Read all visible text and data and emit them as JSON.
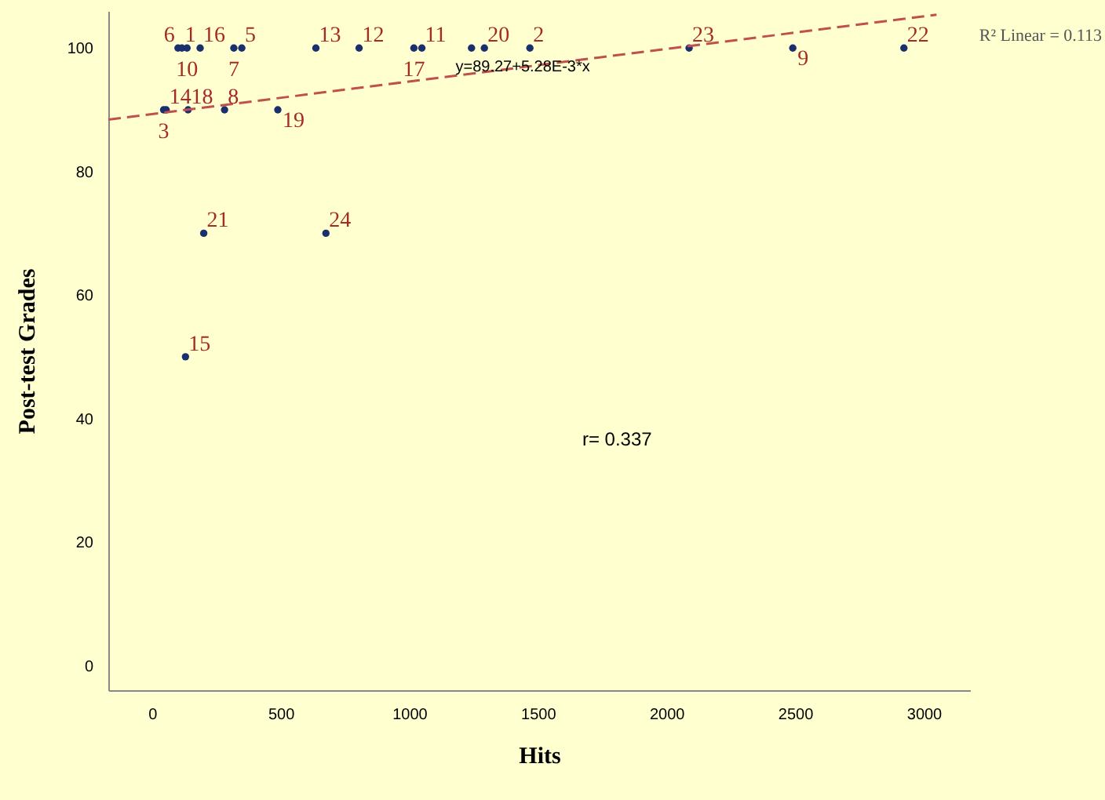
{
  "chart_data": {
    "type": "scatter",
    "xlabel": "Hits",
    "ylabel": "Post-test Grades",
    "xlim": [
      -170,
      3180
    ],
    "ylim": [
      -4,
      106
    ],
    "xticks": [
      0,
      500,
      1000,
      1500,
      2000,
      2500,
      3000
    ],
    "yticks": [
      0,
      20,
      40,
      60,
      80,
      100
    ],
    "grid": false,
    "marker": "circle",
    "series": [
      {
        "color": "#1a2f6e",
        "x": [
          101,
          116,
          136,
          187,
          318,
          349,
          637,
          805,
          1018,
          1049,
          1242,
          1292,
          1469,
          2088,
          2491,
          2923,
          45,
          55,
          140,
          282,
          489,
          201,
          676,
          130
        ],
        "values": [
          100,
          100,
          100,
          100,
          100,
          100,
          100,
          100,
          100,
          100,
          100,
          100,
          100,
          100,
          100,
          100,
          90,
          90,
          90,
          90,
          90,
          70,
          70,
          50
        ]
      },
      {
        "type": "line",
        "color": "#c0504d",
        "line_style": "dashed",
        "marker": "none",
        "x": [
          -170,
          3050
        ],
        "values": [
          88.4,
          105.4
        ]
      }
    ],
    "annotations": [
      {
        "text": "6",
        "x": 101,
        "y": 100
      },
      {
        "text": "1",
        "x": 116,
        "y": 100
      },
      {
        "text": "10",
        "x": 136,
        "y": 100
      },
      {
        "text": "16",
        "x": 187,
        "y": 100
      },
      {
        "text": "7",
        "x": 318,
        "y": 100
      },
      {
        "text": "5",
        "x": 349,
        "y": 100
      },
      {
        "text": "13",
        "x": 637,
        "y": 100
      },
      {
        "text": "12",
        "x": 805,
        "y": 100
      },
      {
        "text": "17",
        "x": 1018,
        "y": 100
      },
      {
        "text": "11",
        "x": 1049,
        "y": 100
      },
      {
        "text": "20",
        "x": 1292,
        "y": 100
      },
      {
        "text": "2",
        "x": 1469,
        "y": 100
      },
      {
        "text": "23",
        "x": 2088,
        "y": 100
      },
      {
        "text": "9",
        "x": 2491,
        "y": 100
      },
      {
        "text": "22",
        "x": 2923,
        "y": 100
      },
      {
        "text": "3",
        "x": 45,
        "y": 90
      },
      {
        "text": "14",
        "x": 55,
        "y": 90
      },
      {
        "text": "18",
        "x": 140,
        "y": 90
      },
      {
        "text": "8",
        "x": 282,
        "y": 90
      },
      {
        "text": "19",
        "x": 489,
        "y": 90
      },
      {
        "text": "21",
        "x": 201,
        "y": 70
      },
      {
        "text": "24",
        "x": 676,
        "y": 70
      },
      {
        "text": "15",
        "x": 130,
        "y": 50
      },
      {
        "text": "y=89.27+5.28E-3*x",
        "x": 1180,
        "y": 97
      },
      "R² Linear = 0.113",
      "r= 0.337"
    ]
  }
}
